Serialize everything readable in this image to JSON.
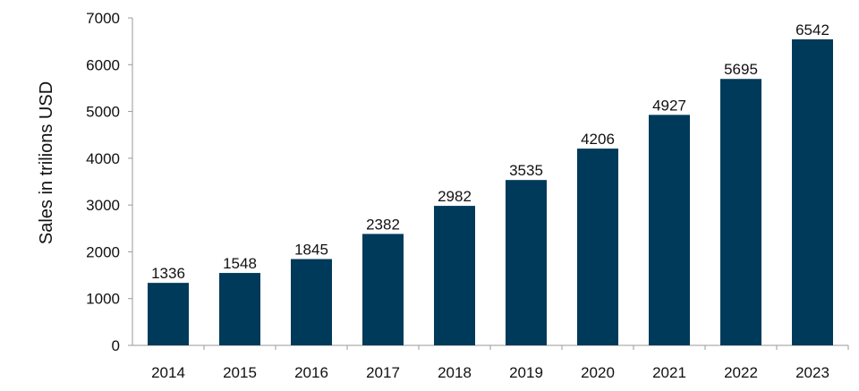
{
  "chart_data": {
    "type": "bar",
    "categories": [
      "2014",
      "2015",
      "2016",
      "2017",
      "2018",
      "2019",
      "2020",
      "2021",
      "2022",
      "2023"
    ],
    "values": [
      1336,
      1548,
      1845,
      2382,
      2982,
      3535,
      4206,
      4927,
      5695,
      6542
    ],
    "data_labels": [
      "1336",
      "1548",
      "1845",
      "2382",
      "2982",
      "3535",
      "4206",
      "4927",
      "5695",
      "6542"
    ],
    "ylabel": "Sales in trilions USD",
    "xlabel": "",
    "title": "",
    "ylim": [
      0,
      7000
    ],
    "y_ticks": [
      "0",
      "1000",
      "2000",
      "3000",
      "4000",
      "5000",
      "6000",
      "7000"
    ],
    "bar_color": "#003a5a",
    "grid": false,
    "legend": "none"
  }
}
